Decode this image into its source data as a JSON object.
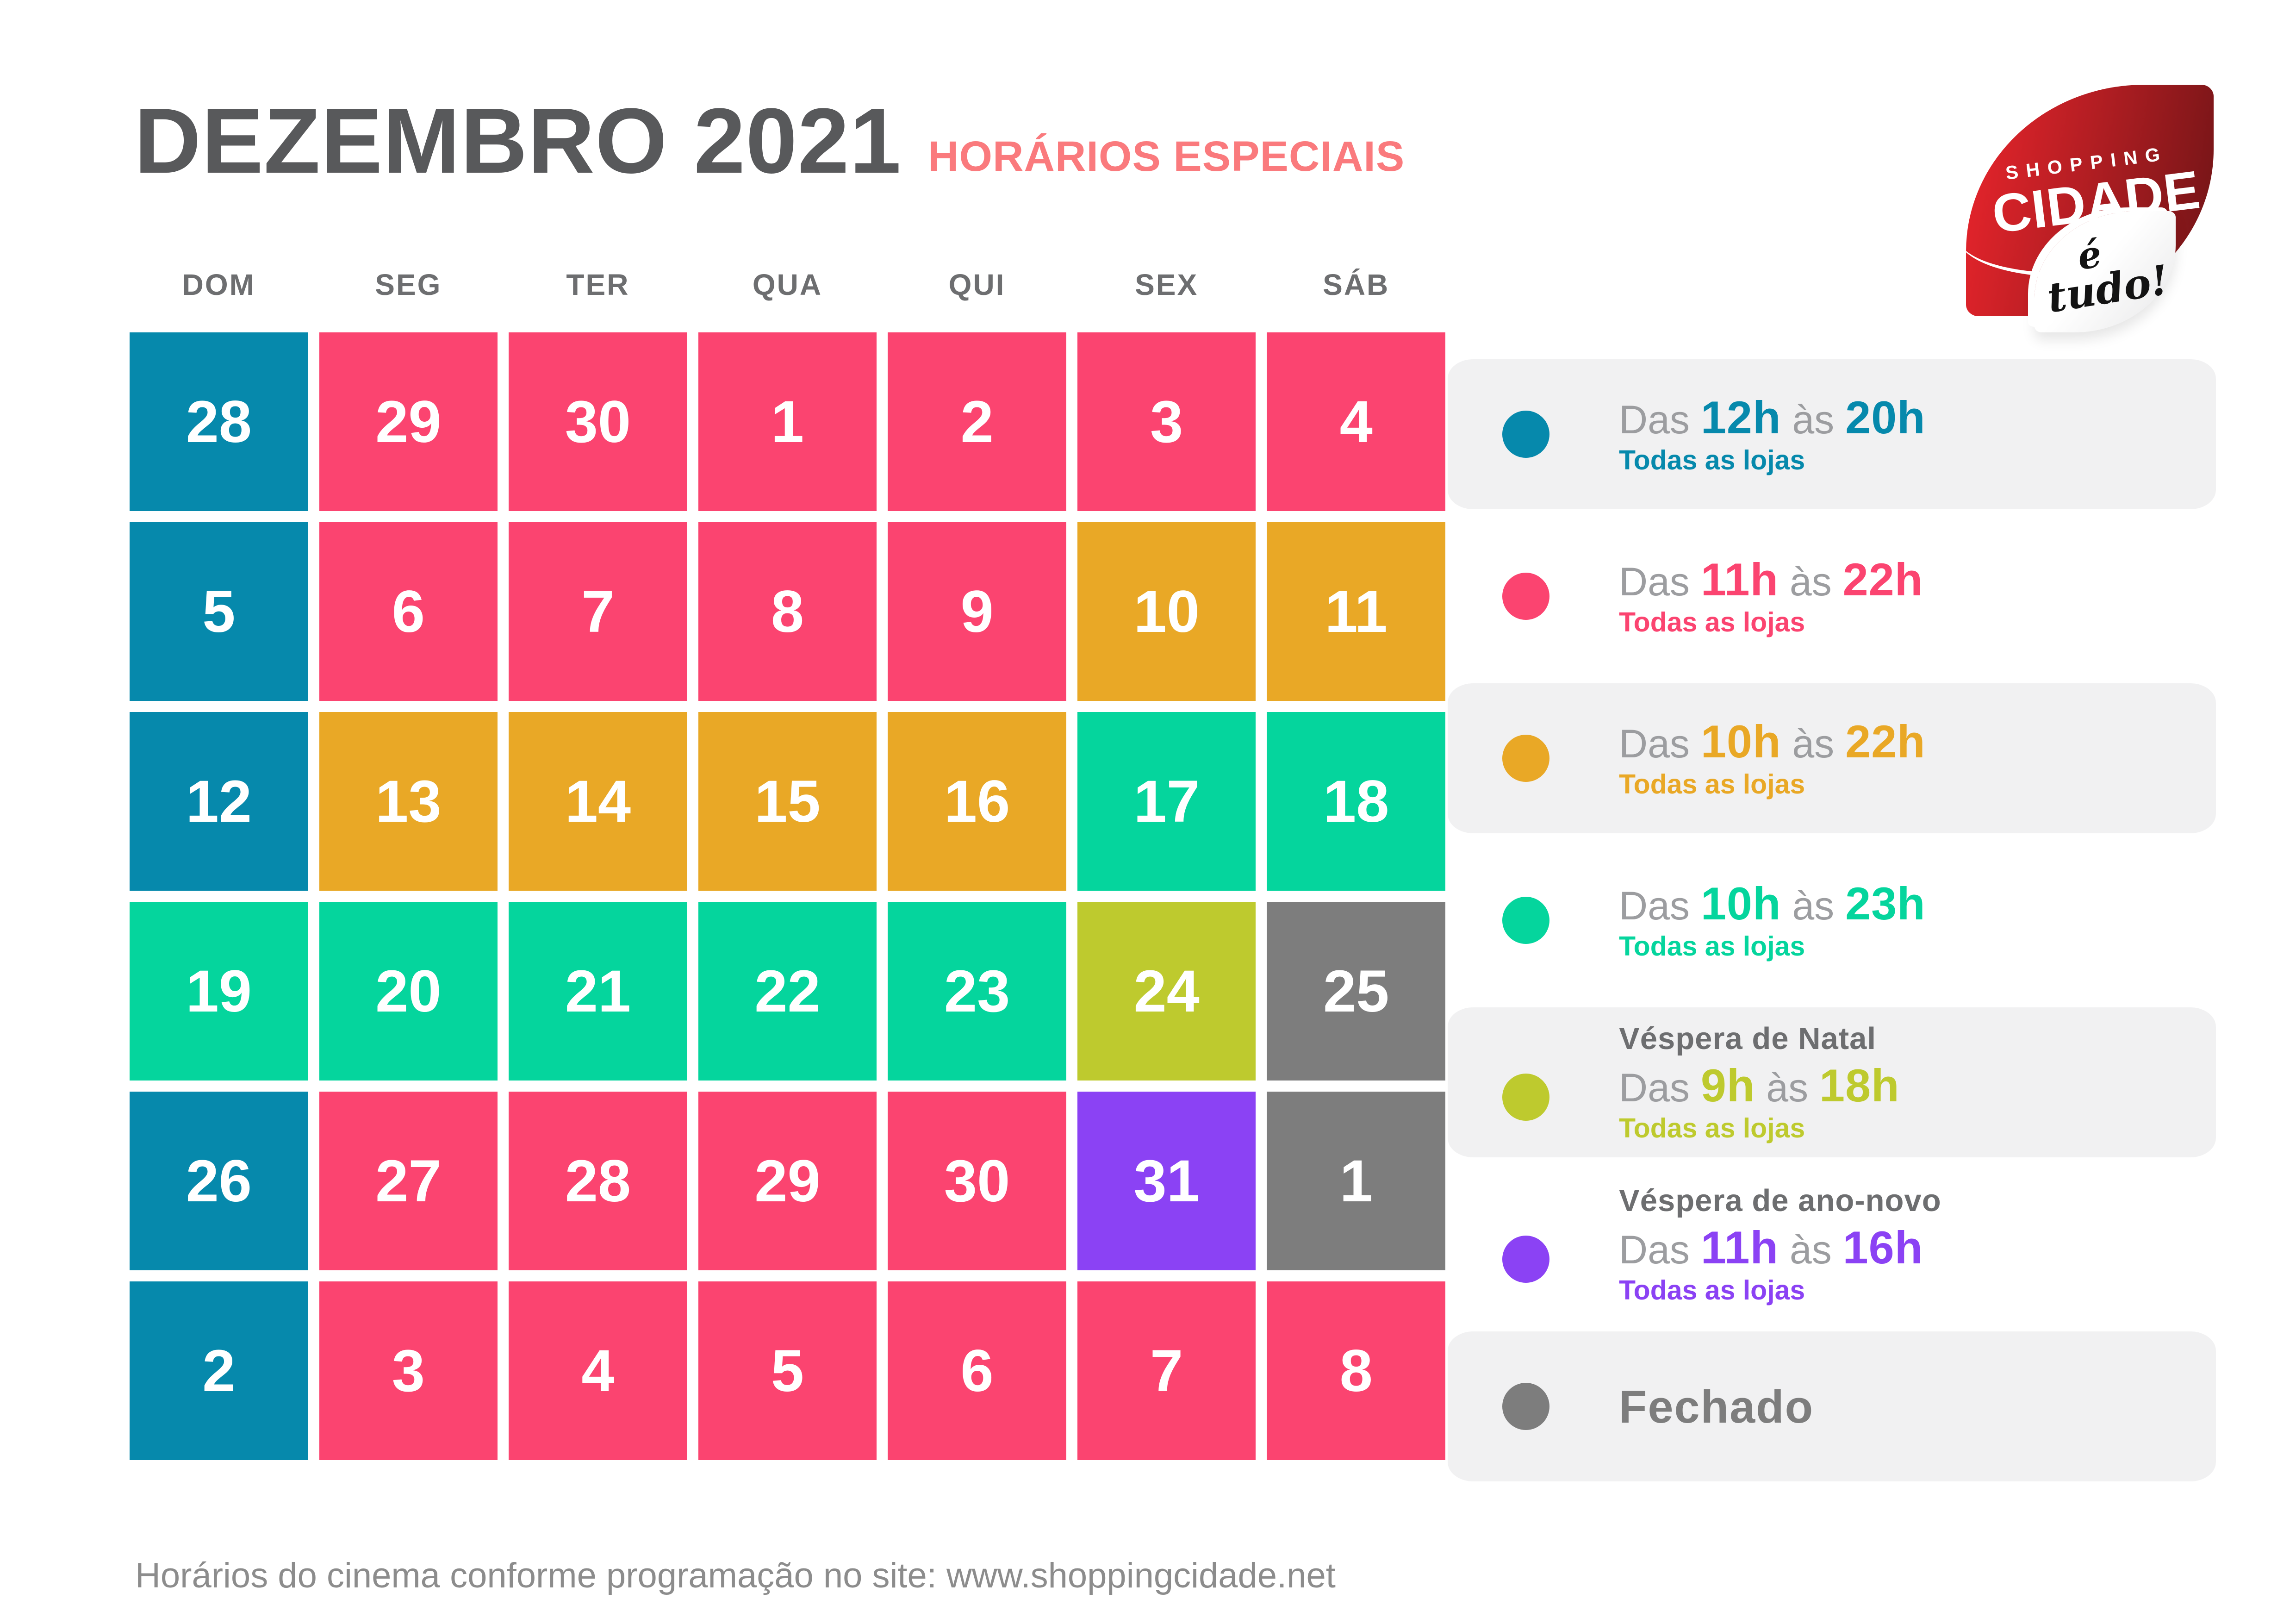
{
  "header": {
    "title": "DEZEMBRO 2021",
    "subtitle": "HORÁRIOS ESPECIAIS"
  },
  "logo": {
    "line1": "SHOPPING",
    "line2": "CIDADE",
    "tagline_line1": "é",
    "tagline_line2": "tudo!"
  },
  "colors": {
    "blue": "#0689AC",
    "pink": "#FB4470",
    "orange": "#E9A826",
    "green": "#05D59D",
    "lime": "#BECA2E",
    "gray": "#7D7D7D",
    "purple": "#8B42F4",
    "legend_bg": "#F1F1F2",
    "title_gray": "#58595B",
    "subtitle_pink": "#FA7A7D",
    "weekday_gray": "#6D6E70",
    "muted_gray": "#9C9DA0",
    "footer_gray": "#8C8C8C"
  },
  "calendar": {
    "weekdays": [
      "DOM",
      "SEG",
      "TER",
      "QUA",
      "QUI",
      "SEX",
      "SÁB"
    ],
    "weeks": [
      [
        {
          "day": "28",
          "color": "blue"
        },
        {
          "day": "29",
          "color": "pink"
        },
        {
          "day": "30",
          "color": "pink"
        },
        {
          "day": "1",
          "color": "pink"
        },
        {
          "day": "2",
          "color": "pink"
        },
        {
          "day": "3",
          "color": "pink"
        },
        {
          "day": "4",
          "color": "pink"
        }
      ],
      [
        {
          "day": "5",
          "color": "blue"
        },
        {
          "day": "6",
          "color": "pink"
        },
        {
          "day": "7",
          "color": "pink"
        },
        {
          "day": "8",
          "color": "pink"
        },
        {
          "day": "9",
          "color": "pink"
        },
        {
          "day": "10",
          "color": "orange"
        },
        {
          "day": "11",
          "color": "orange"
        }
      ],
      [
        {
          "day": "12",
          "color": "blue"
        },
        {
          "day": "13",
          "color": "orange"
        },
        {
          "day": "14",
          "color": "orange"
        },
        {
          "day": "15",
          "color": "orange"
        },
        {
          "day": "16",
          "color": "orange"
        },
        {
          "day": "17",
          "color": "green"
        },
        {
          "day": "18",
          "color": "green"
        }
      ],
      [
        {
          "day": "19",
          "color": "green"
        },
        {
          "day": "20",
          "color": "green"
        },
        {
          "day": "21",
          "color": "green"
        },
        {
          "day": "22",
          "color": "green"
        },
        {
          "day": "23",
          "color": "green"
        },
        {
          "day": "24",
          "color": "lime"
        },
        {
          "day": "25",
          "color": "gray"
        }
      ],
      [
        {
          "day": "26",
          "color": "blue"
        },
        {
          "day": "27",
          "color": "pink"
        },
        {
          "day": "28",
          "color": "pink"
        },
        {
          "day": "29",
          "color": "pink"
        },
        {
          "day": "30",
          "color": "pink"
        },
        {
          "day": "31",
          "color": "purple"
        },
        {
          "day": "1",
          "color": "gray"
        }
      ],
      [
        {
          "day": "2",
          "color": "blue"
        },
        {
          "day": "3",
          "color": "pink"
        },
        {
          "day": "4",
          "color": "pink"
        },
        {
          "day": "5",
          "color": "pink"
        },
        {
          "day": "6",
          "color": "pink"
        },
        {
          "day": "7",
          "color": "pink"
        },
        {
          "day": "8",
          "color": "pink"
        }
      ]
    ]
  },
  "legend": [
    {
      "color": "blue",
      "prefix": "Das",
      "start": "12h",
      "middle": "às",
      "end": "20h",
      "note": "Todas as lojas",
      "highlighted": true
    },
    {
      "color": "pink",
      "prefix": "Das",
      "start": "11h",
      "middle": "às",
      "end": "22h",
      "note": "Todas as lojas",
      "highlighted": false
    },
    {
      "color": "orange",
      "prefix": "Das",
      "start": "10h",
      "middle": "às",
      "end": "22h",
      "note": "Todas as lojas",
      "highlighted": true
    },
    {
      "color": "green",
      "prefix": "Das",
      "start": "10h",
      "middle": "às",
      "end": "23h",
      "note": "Todas as lojas",
      "highlighted": false
    },
    {
      "color": "lime",
      "title": "Véspera de Natal",
      "prefix": "Das",
      "start": "9h",
      "middle": "às",
      "end": "18h",
      "note": "Todas as lojas",
      "highlighted": true
    },
    {
      "color": "purple",
      "title": "Véspera de ano-novo",
      "prefix": "Das",
      "start": "11h",
      "middle": "às",
      "end": "16h",
      "note": "Todas as lojas",
      "highlighted": false
    },
    {
      "color": "gray",
      "label": "Fechado",
      "highlighted": true
    }
  ],
  "footer": {
    "note": "Horários do cinema conforme programação no site: www.shoppingcidade.net"
  }
}
